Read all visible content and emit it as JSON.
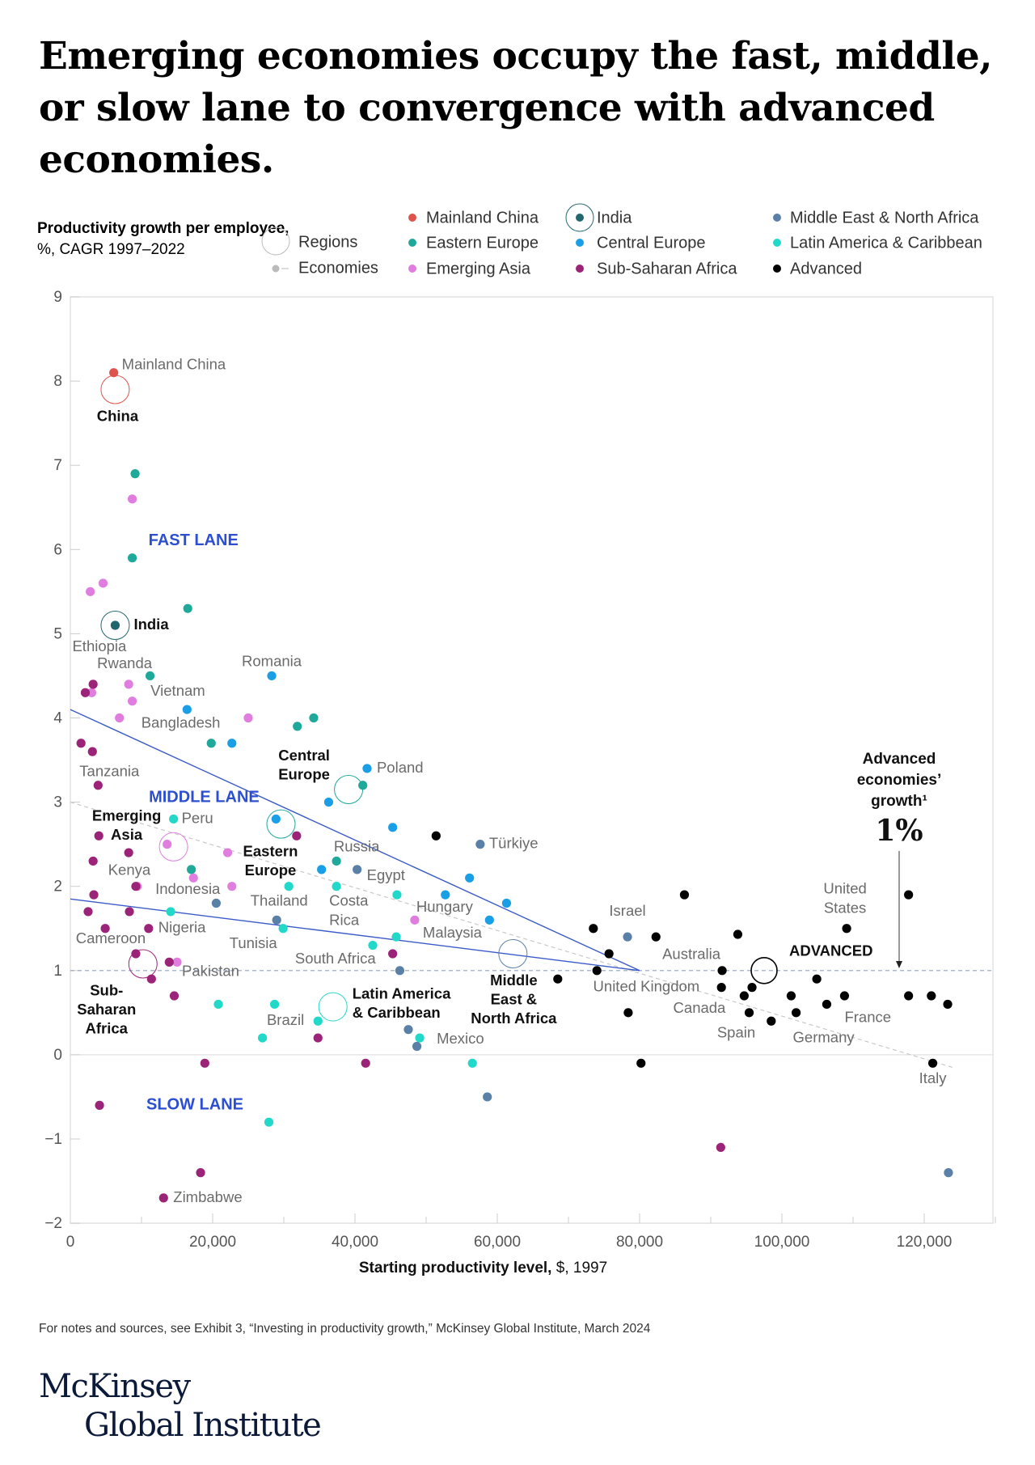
{
  "title": "Emerging economies occupy the fast, middle, or slow lane to convergence with advanced economies.",
  "footnote": "For notes and sources, see Exhibit 3, “Investing in productivity growth,” McKinsey Global Institute, March 2024",
  "logo": {
    "line1": "McKinsey",
    "line2": "Global Institute"
  },
  "chart_data": {
    "type": "scatter",
    "title": "",
    "ylabel_bold": "Productivity growth per employee,",
    "ylabel_unit": "%, CAGR 1997–2022",
    "xlabel_bold": "Starting productivity level,",
    "xlabel_unit": " $, 1997",
    "xlim": [
      0,
      130000
    ],
    "ylim": [
      -2,
      9
    ],
    "x_ticks": [
      "0",
      "20,000",
      "40,000",
      "60,000",
      "80,000",
      "100,000",
      "120,000"
    ],
    "x_tick_values": [
      0,
      20000,
      40000,
      60000,
      80000,
      100000,
      120000
    ],
    "y_ticks": [
      "9",
      "8",
      "7",
      "6",
      "5",
      "4",
      "3",
      "2",
      "1",
      "0",
      "−1",
      "−2"
    ],
    "y_tick_values": [
      9,
      8,
      7,
      6,
      5,
      4,
      3,
      2,
      1,
      0,
      -1,
      -2
    ],
    "grid": false,
    "legend": {
      "placement": "top",
      "regions_label": "Regions",
      "economies_label": "Economies",
      "items": [
        "Mainland China",
        "Eastern Europe",
        "Emerging Asia",
        "India",
        "Central Europe",
        "Sub-Saharan Africa",
        "Middle East & North Africa",
        "Latin America & Caribbean",
        "Advanced"
      ]
    },
    "lanes": [
      {
        "label": "FAST LANE",
        "x": 17300,
        "y": 6.1
      },
      {
        "label": "MIDDLE LANE",
        "x": 18800,
        "y": 3.05
      },
      {
        "label": "SLOW LANE",
        "x": 17500,
        "y": -0.6
      }
    ],
    "lane_boundaries": [
      {
        "from": [
          0,
          4.1
        ],
        "to": [
          80000,
          1.0
        ]
      },
      {
        "from": [
          0,
          1.85
        ],
        "to": [
          80000,
          1.0
        ]
      }
    ],
    "trend_line": {
      "from": [
        0,
        3.0
      ],
      "to": [
        124000,
        -0.15
      ]
    },
    "reference_line": {
      "y": 1.0
    },
    "annotation": {
      "text": [
        "Advanced",
        "economies’",
        "growth¹"
      ],
      "value": "1%"
    },
    "series": [
      {
        "name": "Mainland China",
        "color": "#e0534d",
        "points": [
          {
            "x": 6100,
            "y": 8.1,
            "label": "Mainland China"
          }
        ]
      },
      {
        "name": "India",
        "color": "#23676e",
        "points": [
          {
            "x": 6300,
            "y": 5.1
          }
        ]
      },
      {
        "name": "Eastern Europe",
        "color": "#1fa99a",
        "points": [
          {
            "x": 9100,
            "y": 6.9
          },
          {
            "x": 8700,
            "y": 5.9
          },
          {
            "x": 16500,
            "y": 5.3
          },
          {
            "x": 11200,
            "y": 4.5
          },
          {
            "x": 19800,
            "y": 3.7
          },
          {
            "x": 31900,
            "y": 3.9
          },
          {
            "x": 34200,
            "y": 4.0
          },
          {
            "x": 41100,
            "y": 3.2
          },
          {
            "x": 37400,
            "y": 2.3,
            "label": "Russia"
          },
          {
            "x": 17000,
            "y": 2.2
          }
        ]
      },
      {
        "name": "Emerging Asia",
        "color": "#e07ee0",
        "points": [
          {
            "x": 8700,
            "y": 6.6
          },
          {
            "x": 2800,
            "y": 5.5
          },
          {
            "x": 4600,
            "y": 5.6
          },
          {
            "x": 8200,
            "y": 4.4,
            "label": "Vietnam"
          },
          {
            "x": 3000,
            "y": 4.3
          },
          {
            "x": 8700,
            "y": 4.2
          },
          {
            "x": 6900,
            "y": 4.0,
            "label": "Bangladesh"
          },
          {
            "x": 25000,
            "y": 4.0
          },
          {
            "x": 13600,
            "y": 2.5
          },
          {
            "x": 22100,
            "y": 2.4
          },
          {
            "x": 17300,
            "y": 2.1,
            "label": "Indonesia"
          },
          {
            "x": 22700,
            "y": 2.0,
            "label": "Thailand"
          },
          {
            "x": 9400,
            "y": 2.0
          },
          {
            "x": 15000,
            "y": 1.1,
            "label": "Pakistan"
          },
          {
            "x": 48400,
            "y": 1.6,
            "label": "Malaysia"
          }
        ]
      },
      {
        "name": "Central Europe",
        "color": "#1a9fe6",
        "points": [
          {
            "x": 28300,
            "y": 4.5,
            "label": "Romania"
          },
          {
            "x": 16400,
            "y": 4.1
          },
          {
            "x": 22700,
            "y": 3.7
          },
          {
            "x": 41700,
            "y": 3.4,
            "label": "Poland"
          },
          {
            "x": 36300,
            "y": 3.0
          },
          {
            "x": 28900,
            "y": 2.8
          },
          {
            "x": 35300,
            "y": 2.2
          },
          {
            "x": 45300,
            "y": 2.7
          },
          {
            "x": 56100,
            "y": 2.1
          },
          {
            "x": 52700,
            "y": 1.9
          },
          {
            "x": 61300,
            "y": 1.8
          },
          {
            "x": 58900,
            "y": 1.6
          }
        ]
      },
      {
        "name": "Sub-Saharan Africa",
        "color": "#9b2478",
        "points": [
          {
            "x": 2100,
            "y": 4.3,
            "label": "Ethiopia"
          },
          {
            "x": 3200,
            "y": 4.4,
            "label": "Rwanda"
          },
          {
            "x": 1500,
            "y": 3.7
          },
          {
            "x": 3100,
            "y": 3.6
          },
          {
            "x": 3900,
            "y": 3.2,
            "label": "Tanzania"
          },
          {
            "x": 4000,
            "y": 2.6
          },
          {
            "x": 8200,
            "y": 2.4
          },
          {
            "x": 3200,
            "y": 2.3
          },
          {
            "x": 9200,
            "y": 2.0,
            "label": "Kenya"
          },
          {
            "x": 3300,
            "y": 1.9
          },
          {
            "x": 2500,
            "y": 1.7
          },
          {
            "x": 8300,
            "y": 1.7
          },
          {
            "x": 4900,
            "y": 1.5
          },
          {
            "x": 11000,
            "y": 1.5,
            "label": "Nigeria"
          },
          {
            "x": 9200,
            "y": 1.2,
            "label": "Cameroon"
          },
          {
            "x": 13900,
            "y": 1.1
          },
          {
            "x": 11400,
            "y": 0.9
          },
          {
            "x": 14600,
            "y": 0.7
          },
          {
            "x": 31800,
            "y": 2.6
          },
          {
            "x": 34800,
            "y": 0.2
          },
          {
            "x": 45300,
            "y": 1.2,
            "label": "South Africa"
          },
          {
            "x": 18900,
            "y": -0.1
          },
          {
            "x": 41500,
            "y": -0.1
          },
          {
            "x": 4100,
            "y": -0.6
          },
          {
            "x": 18300,
            "y": -1.4
          },
          {
            "x": 13100,
            "y": -1.7,
            "label": "Zimbabwe"
          },
          {
            "x": 91400,
            "y": -1.1
          }
        ]
      },
      {
        "name": "Latin America & Caribbean",
        "color": "#22d8c8",
        "points": [
          {
            "x": 14500,
            "y": 2.8,
            "label": "Peru"
          },
          {
            "x": 30700,
            "y": 2.0
          },
          {
            "x": 37400,
            "y": 2.0,
            "label": "Costa Rica"
          },
          {
            "x": 45900,
            "y": 1.9,
            "label": "Hungary"
          },
          {
            "x": 14100,
            "y": 1.7
          },
          {
            "x": 29900,
            "y": 1.5
          },
          {
            "x": 45800,
            "y": 1.4
          },
          {
            "x": 42500,
            "y": 1.3
          },
          {
            "x": 20800,
            "y": 0.6
          },
          {
            "x": 28700,
            "y": 0.6
          },
          {
            "x": 34800,
            "y": 0.4,
            "label": "Brazil"
          },
          {
            "x": 27000,
            "y": 0.2
          },
          {
            "x": 49100,
            "y": 0.2,
            "label": "Mexico"
          },
          {
            "x": 56500,
            "y": -0.1
          },
          {
            "x": 27900,
            "y": -0.8
          }
        ]
      },
      {
        "name": "Middle East & North Africa",
        "color": "#5b80a8",
        "points": [
          {
            "x": 29000,
            "y": 1.6,
            "label": "Tunisia"
          },
          {
            "x": 20500,
            "y": 1.8
          },
          {
            "x": 40300,
            "y": 2.2,
            "label": "Egypt"
          },
          {
            "x": 57600,
            "y": 2.5,
            "label": "Türkiye"
          },
          {
            "x": 46300,
            "y": 1.0
          },
          {
            "x": 47500,
            "y": 0.3
          },
          {
            "x": 48700,
            "y": 0.1
          },
          {
            "x": 58600,
            "y": -0.5
          },
          {
            "x": 123400,
            "y": -1.4
          },
          {
            "x": 78300,
            "y": 1.4,
            "label": "Israel"
          }
        ]
      },
      {
        "name": "Advanced",
        "color": "#000000",
        "points": [
          {
            "x": 51400,
            "y": 2.6
          },
          {
            "x": 73500,
            "y": 1.5
          },
          {
            "x": 82300,
            "y": 1.4
          },
          {
            "x": 75700,
            "y": 1.2
          },
          {
            "x": 86300,
            "y": 1.9
          },
          {
            "x": 93800,
            "y": 1.43
          },
          {
            "x": 109100,
            "y": 1.5,
            "label": "United States"
          },
          {
            "x": 117800,
            "y": 1.9
          },
          {
            "x": 74000,
            "y": 1.0
          },
          {
            "x": 68500,
            "y": 0.9
          },
          {
            "x": 91600,
            "y": 1.0,
            "label": "Australia"
          },
          {
            "x": 91500,
            "y": 0.8,
            "label": "United Kingdom"
          },
          {
            "x": 95800,
            "y": 0.8
          },
          {
            "x": 94700,
            "y": 0.7,
            "label": "Canada"
          },
          {
            "x": 101300,
            "y": 0.7
          },
          {
            "x": 104900,
            "y": 0.9
          },
          {
            "x": 108800,
            "y": 0.7
          },
          {
            "x": 117800,
            "y": 0.7
          },
          {
            "x": 121000,
            "y": 0.7
          },
          {
            "x": 123300,
            "y": 0.6
          },
          {
            "x": 106300,
            "y": 0.6,
            "label": "France"
          },
          {
            "x": 78400,
            "y": 0.5
          },
          {
            "x": 95400,
            "y": 0.5,
            "label": "Spain"
          },
          {
            "x": 102000,
            "y": 0.5,
            "label": "Germany"
          },
          {
            "x": 98500,
            "y": 0.4
          },
          {
            "x": 80200,
            "y": -0.1
          },
          {
            "x": 121200,
            "y": -0.1,
            "label": "Italy"
          }
        ]
      }
    ],
    "regions": [
      {
        "label": "China",
        "x": 6300,
        "y": 7.9,
        "color": "#e0534d"
      },
      {
        "label": "India",
        "x": 6300,
        "y": 5.1,
        "color": "#23676e"
      },
      {
        "label": "Emerging Asia",
        "x": 14500,
        "y": 2.47,
        "color": "#e07ee0"
      },
      {
        "label": "Central Europe",
        "x": 39100,
        "y": 3.15,
        "color": "#1fa99a"
      },
      {
        "label": "Eastern Europe",
        "x": 29600,
        "y": 2.74,
        "color": "#1fa99a"
      },
      {
        "label": "Sub-Saharan Africa",
        "x": 10200,
        "y": 1.08,
        "color": "#9b2478"
      },
      {
        "label": "Latin America & Caribbean",
        "x": 36900,
        "y": 0.57,
        "color": "#22d8c8"
      },
      {
        "label": "Middle East & North Africa",
        "x": 62200,
        "y": 1.2,
        "color": "#5b80a8"
      },
      {
        "label": "ADVANCED",
        "x": 97500,
        "y": 1.0,
        "color": "#000000"
      }
    ]
  }
}
